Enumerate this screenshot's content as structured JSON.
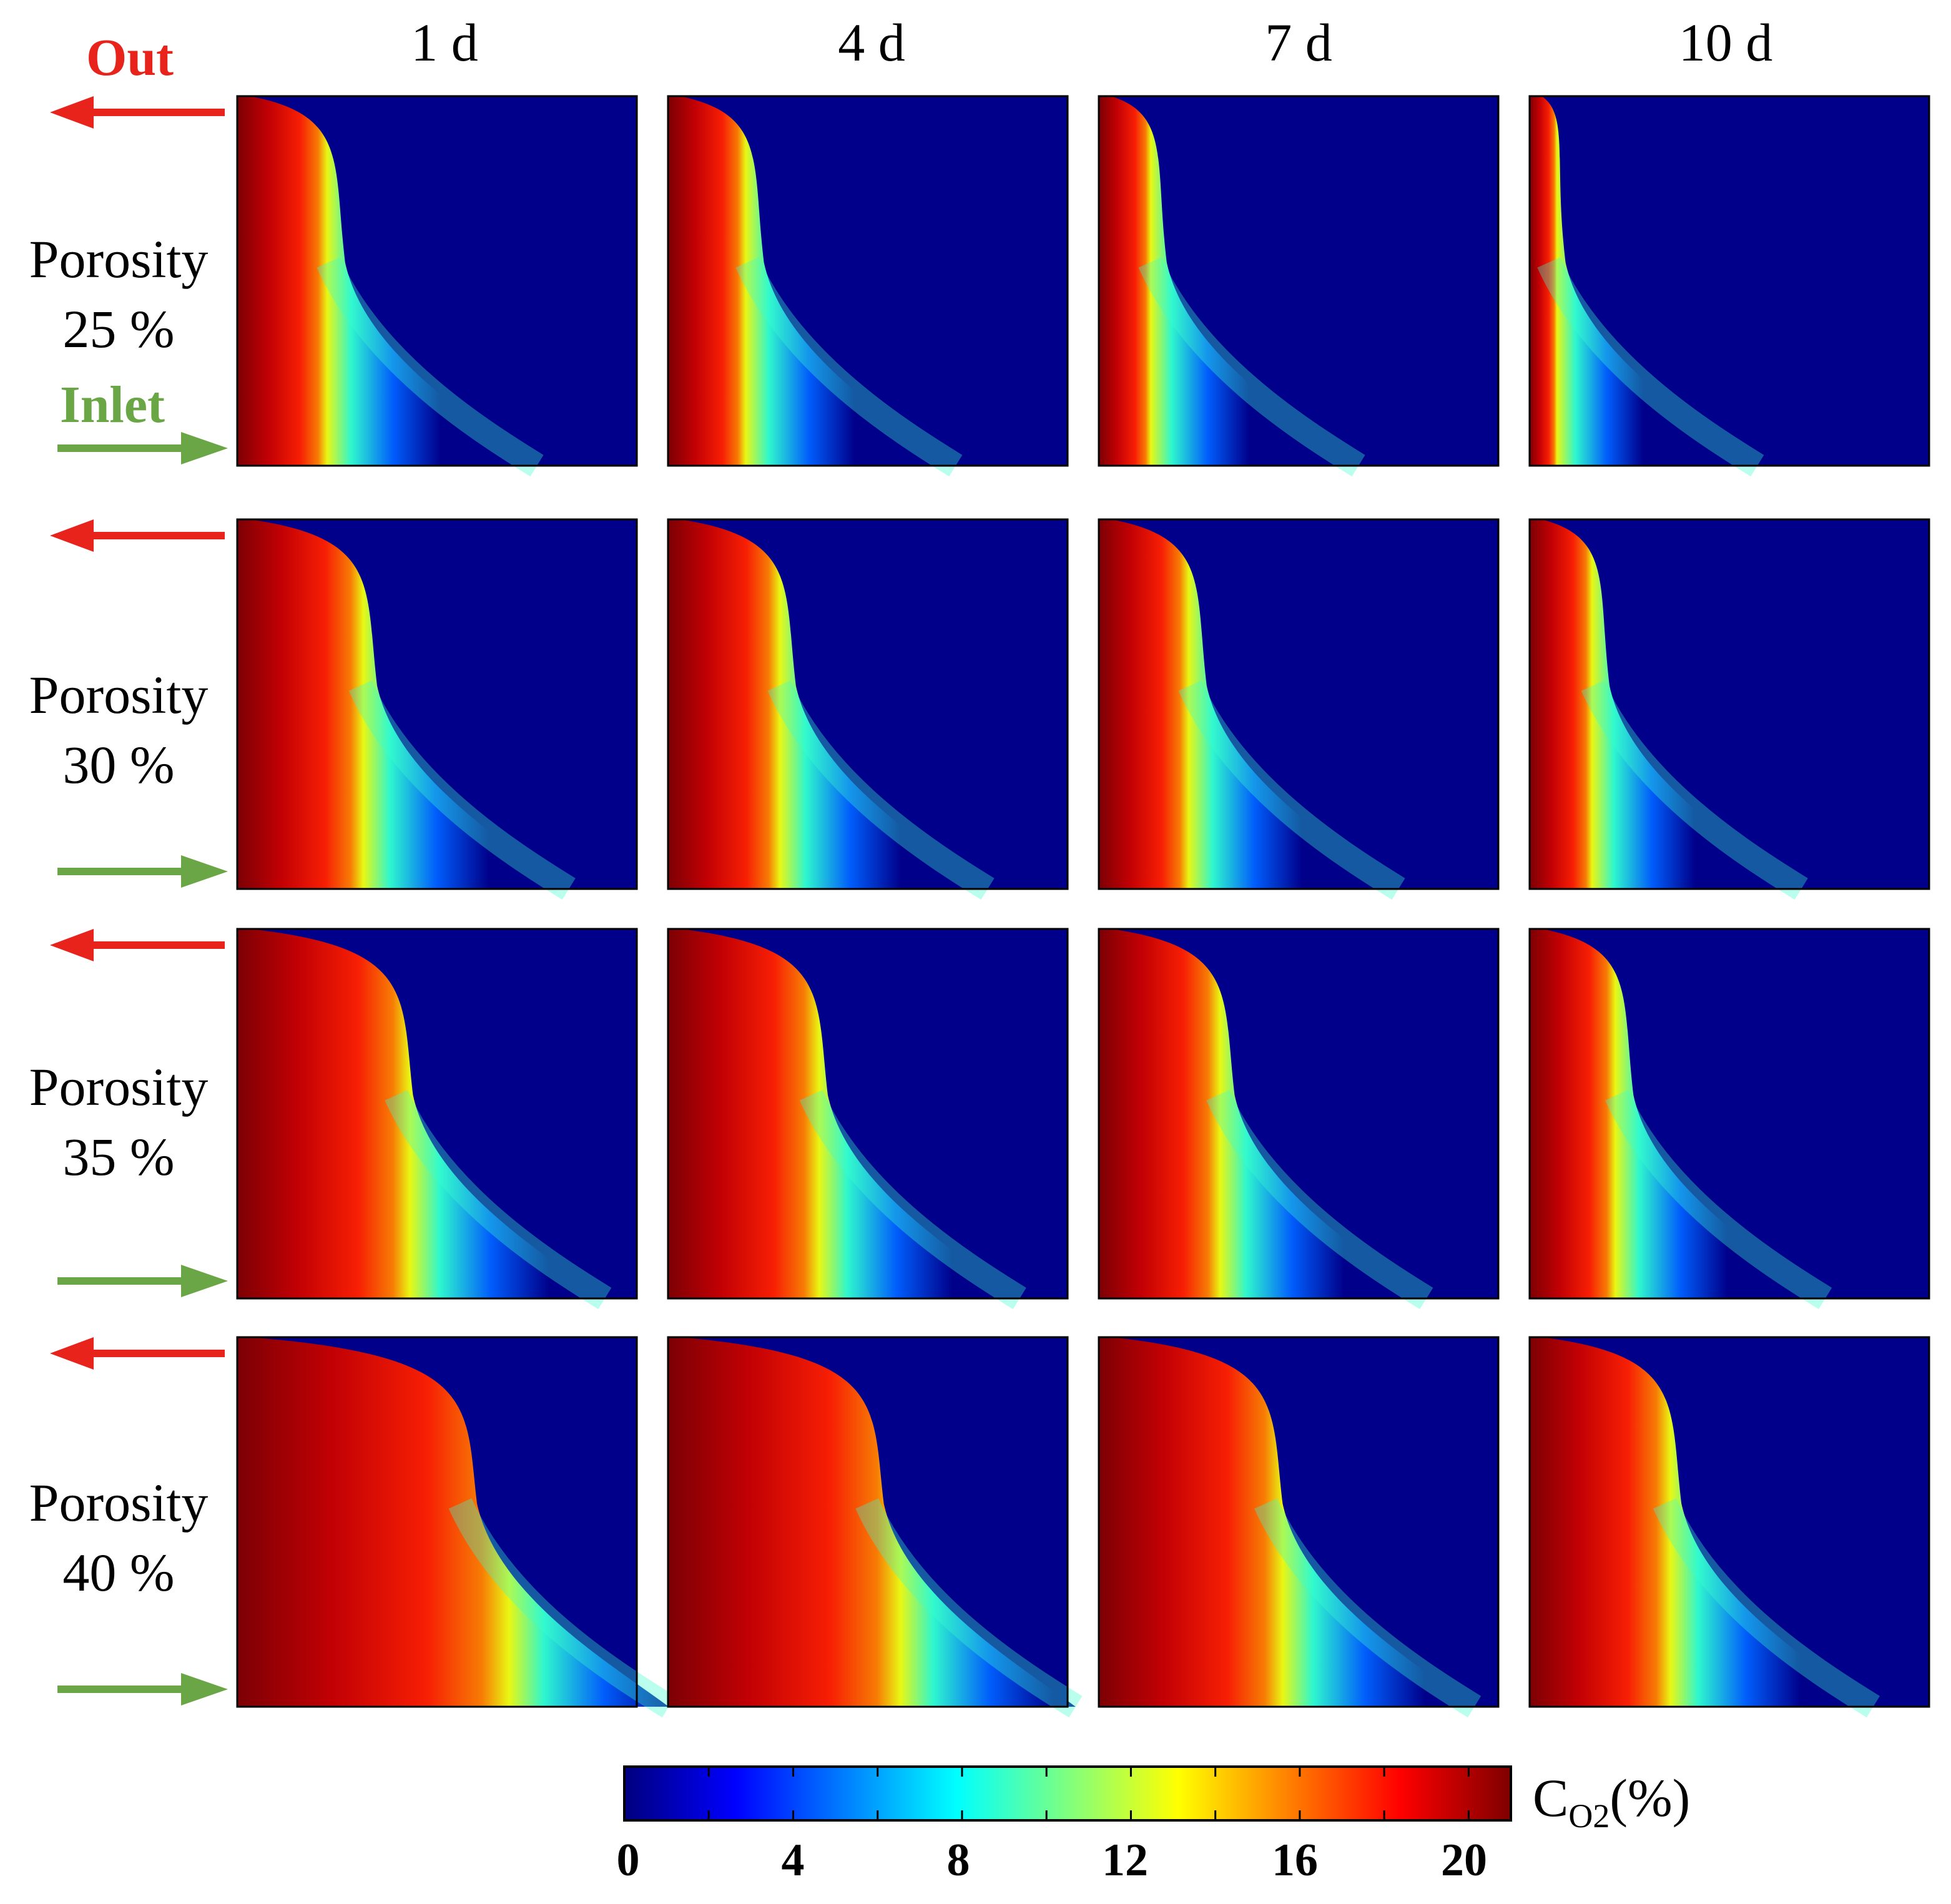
{
  "chart_data": {
    "type": "heatmap",
    "title": "",
    "quantity": "C_O2 (%)",
    "colormap": "jet",
    "colorbar": {
      "label": "C",
      "label_sub": "O2",
      "label_unit": "(%)",
      "range": [
        0,
        21
      ],
      "ticks": [
        0,
        4,
        8,
        12,
        16,
        20
      ],
      "tick_labels": [
        "0",
        "4",
        "8",
        "12",
        "16",
        "20"
      ]
    },
    "columns": [
      "1 d",
      "4 d",
      "7 d",
      "10 d"
    ],
    "rows": [
      {
        "line1": "Porosity",
        "line2": "25 %",
        "porosity": 25
      },
      {
        "line1": "Porosity",
        "line2": "30 %",
        "porosity": 30
      },
      {
        "line1": "Porosity",
        "line2": "35 %",
        "porosity": 35
      },
      {
        "line1": "Porosity",
        "line2": "40 %",
        "porosity": 40
      }
    ],
    "inlet_label": "Inlet",
    "outlet_label": "Out",
    "front_position": [
      [
        0.3,
        0.27,
        0.2,
        0.12
      ],
      [
        0.38,
        0.35,
        0.3,
        0.23
      ],
      [
        0.47,
        0.43,
        0.37,
        0.29
      ],
      [
        0.63,
        0.57,
        0.49,
        0.41
      ]
    ],
    "front_position_note": "estimated O2 front location as fraction of domain width at mid-height",
    "max_value": 21,
    "background_value": 0
  }
}
